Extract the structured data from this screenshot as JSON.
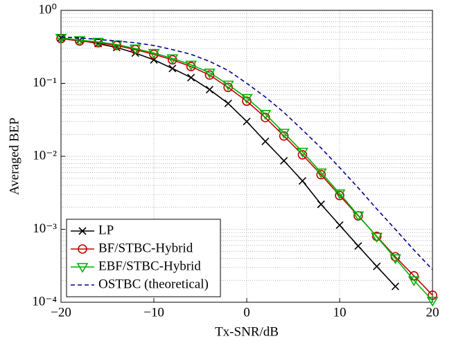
{
  "chart_data": {
    "type": "line",
    "xlabel": "Tx-SNR/dB",
    "ylabel": "Averaged BEP",
    "x": [
      -20,
      -18,
      -16,
      -14,
      -12,
      -10,
      -8,
      -6,
      -4,
      -2,
      0,
      2,
      4,
      6,
      8,
      10,
      12,
      14,
      16,
      18,
      20
    ],
    "series": [
      {
        "name": "LP",
        "color": "#000000",
        "marker": "x",
        "dash": false,
        "values": [
          0.42,
          0.39,
          0.35,
          0.31,
          0.26,
          0.21,
          0.16,
          0.12,
          0.082,
          0.053,
          0.03,
          0.016,
          0.0087,
          0.0046,
          0.0022,
          0.00114,
          0.00059,
          0.00031,
          0.000165,
          null,
          null
        ]
      },
      {
        "name": "BF/STBC-Hybrid",
        "color": "#c00000",
        "marker": "o",
        "dash": false,
        "values": [
          0.41,
          0.38,
          0.36,
          0.33,
          0.29,
          0.25,
          0.21,
          0.17,
          0.13,
          0.088,
          0.057,
          0.034,
          0.019,
          0.0105,
          0.0056,
          0.0029,
          0.00153,
          0.0008,
          0.00042,
          0.00023,
          0.000125
        ]
      },
      {
        "name": "EBF/STBC-Hybrid",
        "color": "#00b000",
        "marker": "v",
        "dash": false,
        "values": [
          0.42,
          0.39,
          0.37,
          0.34,
          0.3,
          0.26,
          0.22,
          0.18,
          0.14,
          0.096,
          0.063,
          0.038,
          0.021,
          0.0115,
          0.006,
          0.0031,
          0.00155,
          0.00079,
          0.0004,
          0.0002,
          0.000105
        ]
      },
      {
        "name": "OSTBC (theoretical)",
        "color": "#00008b",
        "marker": "none",
        "dash": true,
        "values": [
          0.43,
          0.42,
          0.4,
          0.38,
          0.36,
          0.33,
          0.29,
          0.25,
          0.2,
          0.15,
          0.1,
          0.065,
          0.04,
          0.023,
          0.013,
          0.007,
          0.0037,
          0.0019,
          0.001,
          0.00052,
          0.00028
        ]
      }
    ],
    "xlim": [
      -20,
      20
    ],
    "xticks": [
      {
        "value": -20,
        "label": "−20"
      },
      {
        "value": -10,
        "label": "−10"
      },
      0,
      10,
      20
    ],
    "ylim": [
      0.0001,
      1
    ],
    "log_y": true,
    "yticks": [
      {
        "value": 0.0001,
        "label": "10⁻⁴"
      },
      {
        "value": 0.001,
        "label": "10⁻³"
      },
      {
        "value": 0.01,
        "label": "10⁻²"
      },
      {
        "value": 0.1,
        "label": "10⁻¹"
      },
      {
        "value": 1,
        "label": "10⁰"
      }
    ],
    "grid": true,
    "minor_grid": true,
    "legend": "lower left"
  }
}
